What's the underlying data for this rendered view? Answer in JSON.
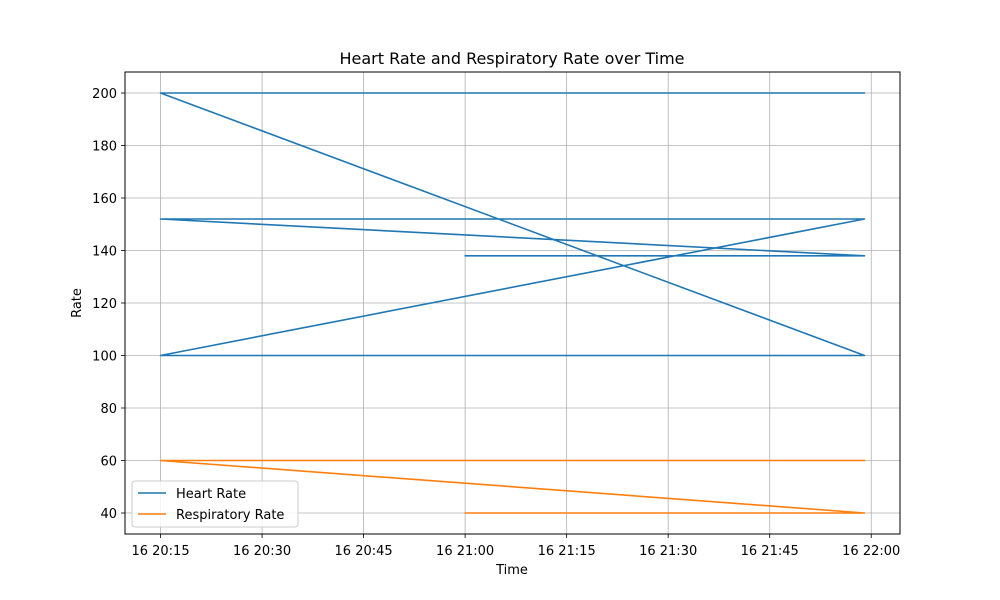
{
  "chart_data": {
    "type": "line",
    "title": "Heart Rate and Respiratory Rate over Time",
    "xlabel": "Time",
    "ylabel": "Rate",
    "x_type": "time",
    "x_ticks": [
      "20:15",
      "20:30",
      "20:45",
      "21:00",
      "21:15",
      "21:30",
      "21:45",
      "22:00"
    ],
    "x_tick_labels": [
      "16 20:15",
      "16 20:30",
      "16 20:45",
      "16 21:00",
      "16 21:15",
      "16 21:30",
      "16 21:45",
      "16 22:00"
    ],
    "xlim": [
      "20:09:45",
      "22:04:15"
    ],
    "y_ticks": [
      40,
      60,
      80,
      100,
      120,
      140,
      160,
      180,
      200
    ],
    "ylim": [
      32,
      208
    ],
    "grid": true,
    "legend_position": "bottom-left",
    "series": [
      {
        "name": "Heart Rate",
        "color": "#1f77b4",
        "points": [
          [
            "20:15",
            200
          ],
          [
            "21:59",
            200
          ],
          [
            "20:15",
            200
          ],
          [
            "21:59",
            100
          ],
          [
            "20:15",
            100
          ],
          [
            "21:59",
            100
          ],
          [
            "20:15",
            100
          ],
          [
            "21:59",
            152
          ],
          [
            "20:15",
            152
          ],
          [
            "21:59",
            152
          ],
          [
            "20:15",
            152
          ],
          [
            "21:59",
            138
          ],
          [
            "21:00",
            138
          ],
          [
            "21:59",
            138
          ]
        ]
      },
      {
        "name": "Respiratory Rate",
        "color": "#ff7f0e",
        "points": [
          [
            "20:15",
            60
          ],
          [
            "21:59",
            60
          ],
          [
            "20:15",
            60
          ],
          [
            "21:59",
            40
          ],
          [
            "21:00",
            40
          ],
          [
            "21:59",
            40
          ]
        ]
      }
    ]
  }
}
